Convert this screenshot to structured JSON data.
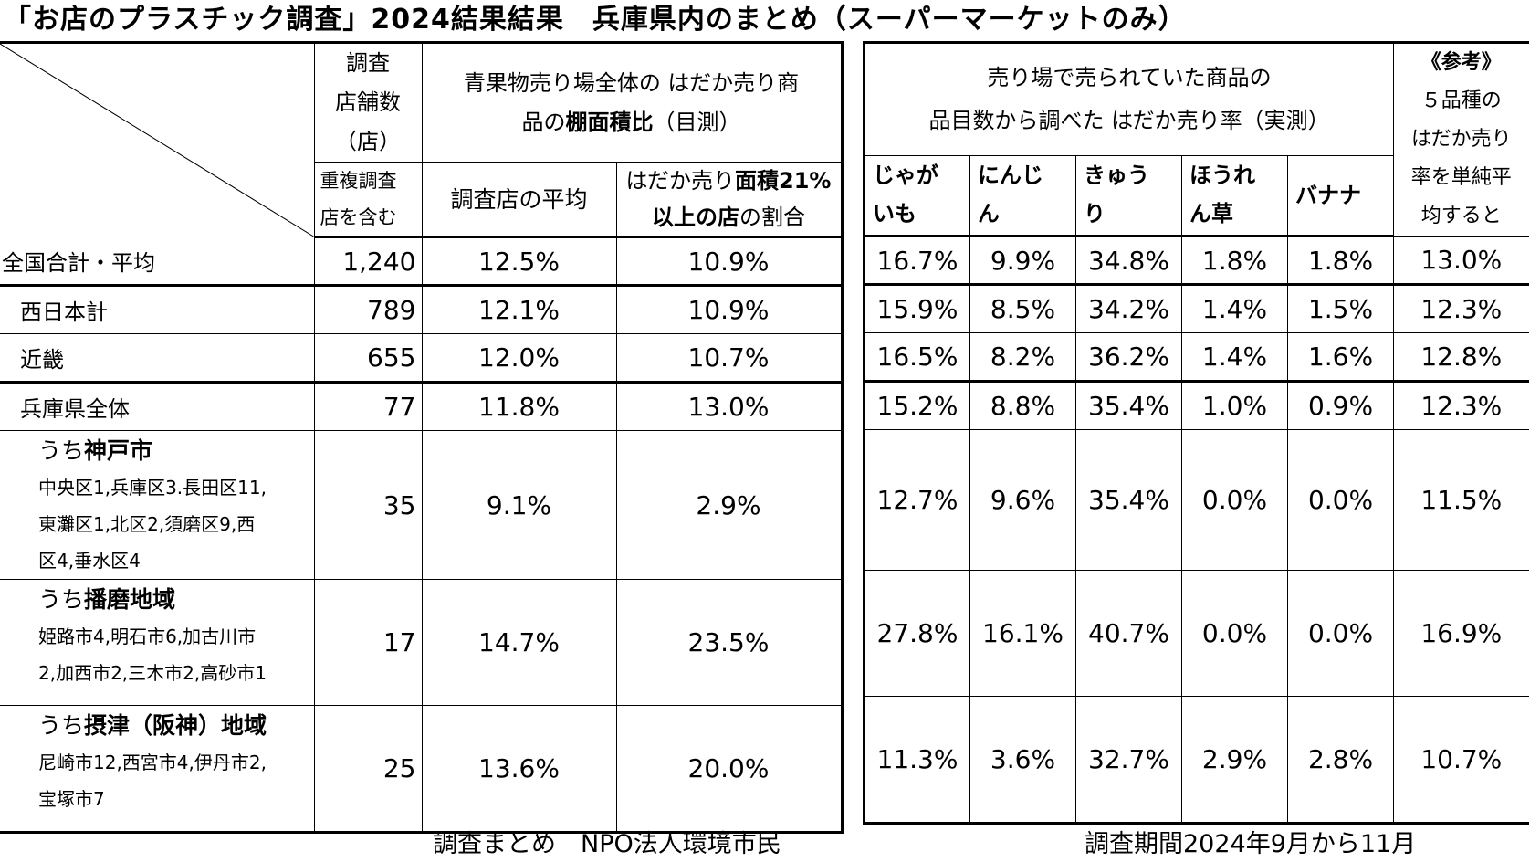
{
  "title": "「お店のプラスチック調査」2024結果結果　兵庫県内のまとめ（スーパーマーケットのみ）",
  "left_header": {
    "stores_line1": "調査",
    "stores_line2": "店舗数",
    "stores_line3": "（店）",
    "stores_note_line1": "重複調査",
    "stores_note_line2": "店を含む",
    "shelf_title_line1": "青果物売り場全体の はだか売り商",
    "shelf_title_pre": "品の",
    "shelf_title_bold": "棚面積比",
    "shelf_title_post": "（目測）",
    "avg_label": "調査店の平均",
    "ratio_pre": "はだか売り",
    "ratio_bold1": "面積21%",
    "ratio_bold2": "以上の店",
    "ratio_post": "の割合"
  },
  "right_header": {
    "title_line1": "売り場で売られていた商品の",
    "title_line2": "品目数から調べた はだか売り率（実測）",
    "veg": [
      {
        "line1": "じゃが",
        "line2": "いも"
      },
      {
        "line1": "にんじ",
        "line2": "ん"
      },
      {
        "line1": "きゅう",
        "line2": "り"
      },
      {
        "line1": "ほうれ",
        "line2": "ん草"
      },
      {
        "line1": "バナナ",
        "line2": ""
      }
    ],
    "ref_title": "《参考》",
    "ref_line1": "５品種の",
    "ref_line2": "はだか売り",
    "ref_line3": "率を単純平",
    "ref_line4": "均すると"
  },
  "rows": [
    {
      "label": "全国合計・平均",
      "stores": "1,240",
      "avg": "12.5%",
      "ratio": "10.9%",
      "rates": [
        "16.7%",
        "9.9%",
        "34.8%",
        "1.8%",
        "1.8%"
      ],
      "ref": "13.0%"
    },
    {
      "label": "西日本計",
      "stores": "789",
      "avg": "12.1%",
      "ratio": "10.9%",
      "rates": [
        "15.9%",
        "8.5%",
        "34.2%",
        "1.4%",
        "1.5%"
      ],
      "ref": "12.3%"
    },
    {
      "label": "近畿",
      "stores": "655",
      "avg": "12.0%",
      "ratio": "10.7%",
      "rates": [
        "16.5%",
        "8.2%",
        "36.2%",
        "1.4%",
        "1.6%"
      ],
      "ref": "12.8%"
    },
    {
      "label": "兵庫県全体",
      "stores": "77",
      "avg": "11.8%",
      "ratio": "13.0%",
      "rates": [
        "15.2%",
        "8.8%",
        "35.4%",
        "1.0%",
        "0.9%"
      ],
      "ref": "12.3%"
    },
    {
      "label_pre": "うち",
      "label_bold": "神戸市",
      "areas": [
        "中央区1,兵庫区3.長田区11,",
        "東灘区1,北区2,須磨区9,西",
        "区4,垂水区4"
      ],
      "stores": "35",
      "avg": "9.1%",
      "ratio": "2.9%",
      "rates": [
        "12.7%",
        "9.6%",
        "35.4%",
        "0.0%",
        "0.0%"
      ],
      "ref": "11.5%"
    },
    {
      "label_pre": "うち",
      "label_bold": "播磨地域",
      "areas": [
        "姫路市4,明石市6,加古川市",
        "2,加西市2,三木市2,高砂市1"
      ],
      "stores": "17",
      "avg": "14.7%",
      "ratio": "23.5%",
      "rates": [
        "27.8%",
        "16.1%",
        "40.7%",
        "0.0%",
        "0.0%"
      ],
      "ref": "16.9%"
    },
    {
      "label_pre": "うち",
      "label_bold": "摂津（阪神）地域",
      "areas": [
        "尼崎市12,西宮市4,伊丹市2,",
        "宝塚市7"
      ],
      "stores": "25",
      "avg": "13.6%",
      "ratio": "20.0%",
      "rates": [
        "11.3%",
        "3.6%",
        "32.7%",
        "2.9%",
        "2.8%"
      ],
      "ref": "10.7%"
    }
  ],
  "footer": {
    "left": "調査まとめ　NPO法人環境市民",
    "right": "調査期間2024年9月から11月"
  }
}
